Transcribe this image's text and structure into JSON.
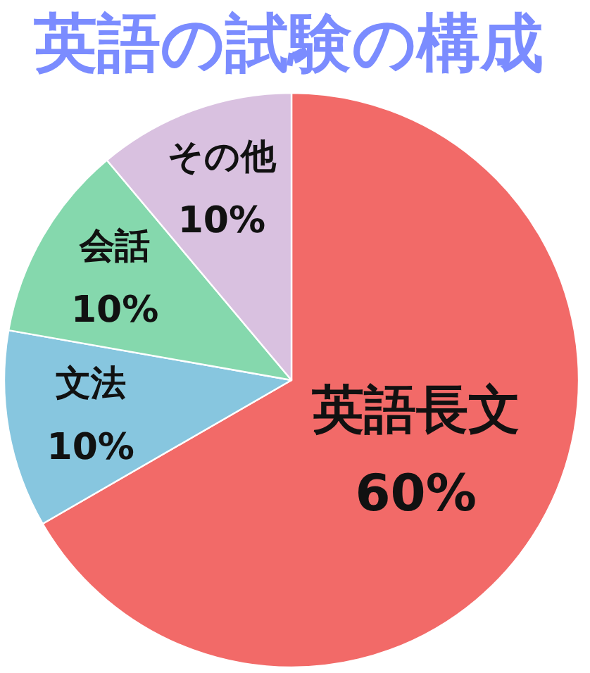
{
  "chart_data": {
    "type": "pie",
    "title": "英語の試験の構成",
    "categories": [
      "英語長文",
      "文法",
      "会話",
      "その他"
    ],
    "values": [
      60,
      10,
      10,
      10
    ],
    "value_labels": [
      "60%",
      "10%",
      "10%",
      "10%"
    ],
    "colors": [
      "#f26a68",
      "#87c6df",
      "#85d8ad",
      "#d9c1e0"
    ]
  }
}
